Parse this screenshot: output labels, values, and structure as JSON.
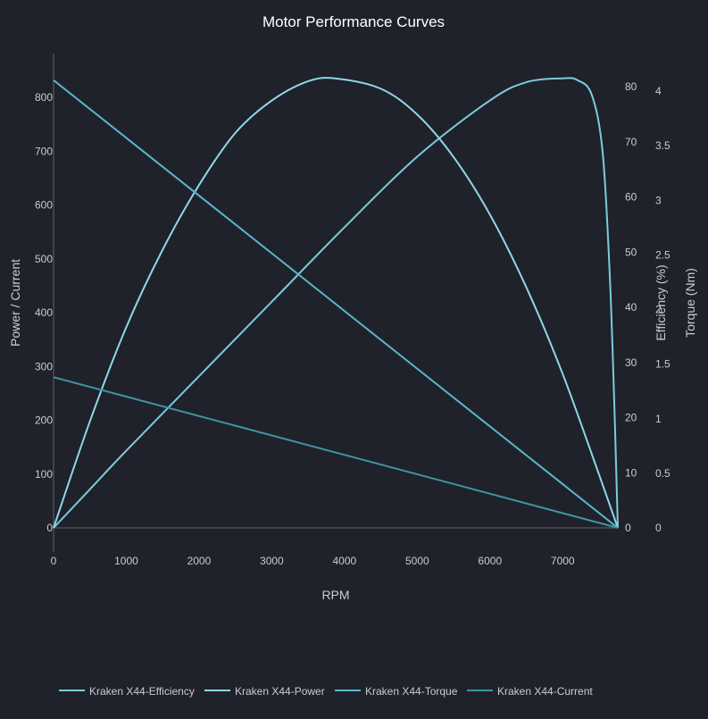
{
  "chart_data": {
    "type": "line",
    "title": "Motor Performance Curves",
    "xlabel": "RPM",
    "ylabel_left": "Power / Current",
    "ylabel_right_efficiency": "Efficiency (%)",
    "ylabel_right_torque": "Torque (Nm)",
    "xlim": [
      0,
      7758
    ],
    "ylim_left": [
      0,
      800
    ],
    "ylim_efficiency": [
      0,
      80
    ],
    "ylim_torque": [
      0,
      4
    ],
    "x_ticks": [
      "0",
      "1000",
      "2000",
      "3000",
      "4000",
      "5000",
      "6000",
      "7000"
    ],
    "y_left_ticks": [
      "0",
      "100",
      "200",
      "300",
      "400",
      "500",
      "600",
      "700",
      "800"
    ],
    "y_efficiency_ticks": [
      "0",
      "10",
      "20",
      "30",
      "40",
      "50",
      "60",
      "70",
      "80"
    ],
    "y_torque_ticks": [
      "0",
      "0.5",
      "1",
      "1.5",
      "2",
      "2.5",
      "3",
      "3.5",
      "4"
    ],
    "grid": false,
    "legend_position": "bottom",
    "series": [
      {
        "name": "Kraken X44-Efficiency",
        "axis": "efficiency",
        "color": "#7ccbe0",
        "x": [
          0,
          500,
          1000,
          2000,
          3000,
          4000,
          5000,
          6000,
          6500,
          7000,
          7200,
          7400,
          7550,
          7650,
          7720,
          7758
        ],
        "y": [
          0,
          7,
          14,
          27.5,
          41,
          54.5,
          67.3,
          77.5,
          80.8,
          81.5,
          81.2,
          78.5,
          68,
          45,
          18,
          0
        ]
      },
      {
        "name": "Kraken X44-Power",
        "axis": "left",
        "color": "#8fd6ea",
        "x": [
          0,
          500,
          1000,
          1500,
          2000,
          2500,
          3000,
          3500,
          3879,
          4500,
          5000,
          5500,
          6000,
          6500,
          7000,
          7500,
          7758
        ],
        "y": [
          0,
          198,
          373,
          517,
          637,
          734,
          794,
          830,
          835,
          816,
          768,
          689,
          582,
          447,
          286,
          99,
          0
        ]
      },
      {
        "name": "Kraken X44-Torque",
        "axis": "torque",
        "color": "#5bb5c8",
        "x": [
          0,
          7758
        ],
        "y": [
          4.1,
          0
        ]
      },
      {
        "name": "Kraken X44-Current",
        "axis": "left",
        "color": "#3d95a6",
        "x": [
          0,
          7758
        ],
        "y": [
          280,
          0
        ]
      }
    ]
  }
}
